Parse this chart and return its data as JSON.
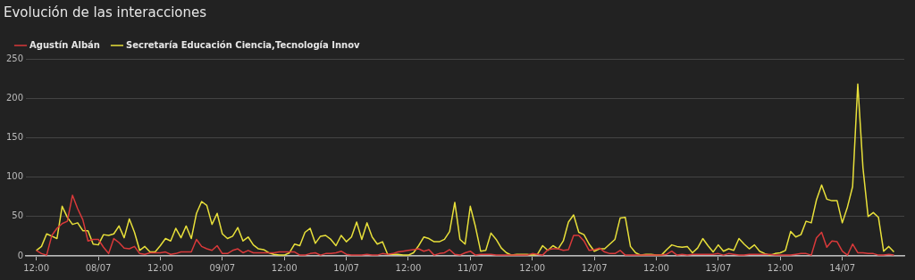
{
  "chart_data": {
    "type": "line",
    "title": "Evolución de las interacciones",
    "x": [
      "--07-07T12:00",
      "--07-07T13:00",
      "--07-07T14:00",
      "--07-07T15:00",
      "--07-07T16:00",
      "--07-07T17:00",
      "--07-07T18:00",
      "--07-07T19:00",
      "--07-07T20:00",
      "--07-07T21:00",
      "--07-07T22:00",
      "--07-07T23:00",
      "--07-08T00:00",
      "--07-08T01:00",
      "--07-08T02:00",
      "--07-08T03:00",
      "--07-08T04:00",
      "--07-08T05:00",
      "--07-08T06:00",
      "--07-08T07:00",
      "--07-08T08:00",
      "--07-08T09:00",
      "--07-08T10:00",
      "--07-08T11:00",
      "--07-08T12:00",
      "--07-08T13:00",
      "--07-08T14:00",
      "--07-08T15:00",
      "--07-08T16:00",
      "--07-08T17:00",
      "--07-08T18:00",
      "--07-08T19:00",
      "--07-08T20:00",
      "--07-08T21:00",
      "--07-08T22:00",
      "--07-08T23:00",
      "--07-09T00:00",
      "--07-09T01:00",
      "--07-09T02:00",
      "--07-09T03:00",
      "--07-09T04:00",
      "--07-09T05:00",
      "--07-09T06:00",
      "--07-09T07:00",
      "--07-09T08:00",
      "--07-09T09:00",
      "--07-09T10:00",
      "--07-09T11:00",
      "--07-09T12:00",
      "--07-09T13:00",
      "--07-09T14:00",
      "--07-09T15:00",
      "--07-09T16:00",
      "--07-09T17:00",
      "--07-09T18:00",
      "--07-09T19:00",
      "--07-09T20:00",
      "--07-09T21:00",
      "--07-09T22:00",
      "--07-09T23:00",
      "--07-10T00:00",
      "--07-10T01:00",
      "--07-10T02:00",
      "--07-10T03:00",
      "--07-10T04:00",
      "--07-10T05:00",
      "--07-10T06:00",
      "--07-10T07:00",
      "--07-10T08:00",
      "--07-10T09:00",
      "--07-10T10:00",
      "--07-10T11:00",
      "--07-10T12:00",
      "--07-10T13:00",
      "--07-10T14:00",
      "--07-10T15:00",
      "--07-10T16:00",
      "--07-10T17:00",
      "--07-10T18:00",
      "--07-10T19:00",
      "--07-10T20:00",
      "--07-10T21:00",
      "--07-10T22:00",
      "--07-10T23:00",
      "--07-11T00:00",
      "--07-11T01:00",
      "--07-11T02:00",
      "--07-11T03:00",
      "--07-11T04:00",
      "--07-11T05:00",
      "--07-11T06:00",
      "--07-11T07:00",
      "--07-11T08:00",
      "--07-11T09:00",
      "--07-11T10:00",
      "--07-11T11:00",
      "--07-11T12:00",
      "--07-11T13:00",
      "--07-11T14:00",
      "--07-11T15:00",
      "--07-11T16:00",
      "--07-11T17:00",
      "--07-11T18:00",
      "--07-11T19:00",
      "--07-11T20:00",
      "--07-11T21:00",
      "--07-11T22:00",
      "--07-11T23:00",
      "--07-12T00:00",
      "--07-12T01:00",
      "--07-12T02:00",
      "--07-12T03:00",
      "--07-12T04:00",
      "--07-12T05:00",
      "--07-12T06:00",
      "--07-12T07:00",
      "--07-12T08:00",
      "--07-12T09:00",
      "--07-12T10:00",
      "--07-12T11:00",
      "--07-12T12:00",
      "--07-12T13:00",
      "--07-12T14:00",
      "--07-12T15:00",
      "--07-12T16:00",
      "--07-12T17:00",
      "--07-12T18:00",
      "--07-12T19:00",
      "--07-12T20:00",
      "--07-12T21:00",
      "--07-12T22:00",
      "--07-12T23:00",
      "--07-13T00:00",
      "--07-13T01:00",
      "--07-13T02:00",
      "--07-13T03:00",
      "--07-13T04:00",
      "--07-13T05:00",
      "--07-13T06:00",
      "--07-13T07:00",
      "--07-13T08:00",
      "--07-13T09:00",
      "--07-13T10:00",
      "--07-13T11:00",
      "--07-13T12:00",
      "--07-13T13:00",
      "--07-13T14:00",
      "--07-13T15:00",
      "--07-13T16:00",
      "--07-13T17:00",
      "--07-13T18:00",
      "--07-13T19:00",
      "--07-13T20:00",
      "--07-13T21:00",
      "--07-13T22:00",
      "--07-13T23:00",
      "--07-14T00:00",
      "--07-14T01:00",
      "--07-14T02:00",
      "--07-14T03:00",
      "--07-14T04:00",
      "--07-14T05:00",
      "--07-14T06:00",
      "--07-14T07:00",
      "--07-14T08:00",
      "--07-14T09:00",
      "--07-14T10:00"
    ],
    "series": [
      {
        "name": "Agustín Albán",
        "color": "#d9393a",
        "values": [
          7,
          3,
          1,
          26,
          35,
          41,
          44,
          77,
          60,
          46,
          19,
          21,
          21,
          11,
          3,
          22,
          17,
          10,
          9,
          12,
          3,
          2,
          4,
          4,
          4,
          5,
          2,
          3,
          5,
          5,
          5,
          21,
          12,
          9,
          7,
          13,
          3,
          3,
          7,
          9,
          4,
          7,
          4,
          4,
          4,
          4,
          4,
          5,
          5,
          5,
          5,
          1,
          1,
          3,
          4,
          1,
          3,
          3,
          4,
          6,
          2,
          1,
          1,
          1,
          2,
          1,
          1,
          3,
          2,
          3,
          5,
          6,
          7,
          8,
          9,
          6,
          8,
          1,
          3,
          4,
          8,
          2,
          1,
          4,
          6,
          1,
          2,
          2,
          2,
          1,
          1,
          1,
          1,
          1,
          1,
          1,
          3,
          2,
          1,
          8,
          9,
          9,
          7,
          8,
          26,
          26,
          19,
          7,
          8,
          10,
          5,
          3,
          3,
          7,
          1,
          1,
          1,
          1,
          1,
          1,
          1,
          1,
          2,
          6,
          1,
          2,
          1,
          2,
          2,
          2,
          2,
          2,
          3,
          1,
          3,
          2,
          1,
          1,
          2,
          2,
          2,
          2,
          2,
          1,
          1,
          1,
          1,
          2,
          3,
          3,
          1,
          23,
          30,
          11,
          19,
          18,
          6,
          1,
          15,
          4,
          4,
          3,
          3,
          1,
          1,
          2,
          1
        ]
      },
      {
        "name": "Secretaría Educación Ciencia,Tecnología Innov",
        "color": "#e8e03a",
        "values": [
          7,
          12,
          28,
          25,
          22,
          63,
          49,
          40,
          42,
          32,
          32,
          15,
          14,
          27,
          26,
          28,
          38,
          23,
          47,
          30,
          7,
          12,
          5,
          5,
          13,
          22,
          19,
          35,
          23,
          38,
          22,
          54,
          69,
          64,
          40,
          54,
          28,
          22,
          25,
          36,
          19,
          24,
          14,
          9,
          8,
          4,
          2,
          1,
          1,
          4,
          15,
          13,
          30,
          35,
          16,
          25,
          26,
          21,
          13,
          26,
          18,
          24,
          43,
          21,
          42,
          24,
          15,
          18,
          2,
          2,
          2,
          1,
          1,
          4,
          13,
          24,
          22,
          18,
          18,
          21,
          31,
          68,
          21,
          15,
          63,
          37,
          6,
          7,
          29,
          21,
          10,
          4,
          1,
          2,
          2,
          2,
          1,
          2,
          13,
          7,
          13,
          9,
          19,
          43,
          52,
          30,
          27,
          15,
          6,
          9,
          9,
          15,
          21,
          48,
          49,
          12,
          4,
          1,
          2,
          2,
          1,
          1,
          8,
          14,
          12,
          11,
          12,
          4,
          10,
          22,
          13,
          5,
          14,
          6,
          9,
          7,
          22,
          15,
          9,
          14,
          6,
          3,
          1,
          3,
          4,
          7,
          31,
          24,
          27,
          44,
          42,
          71,
          90,
          72,
          70,
          70,
          42,
          62,
          88,
          218,
          112,
          50,
          55,
          49,
          6,
          12,
          5
        ]
      }
    ],
    "xlim": [
      "--07-07T10:00",
      "--07-14T12:00"
    ],
    "xticks": [
      {
        "value": "--07-07T12:00",
        "label": "12:00"
      },
      {
        "value": "--07-08",
        "label": "08/07"
      },
      {
        "value": "--07-08T12:00",
        "label": "12:00"
      },
      {
        "value": "--07-09",
        "label": "09/07"
      },
      {
        "value": "--07-09T12:00",
        "label": "12:00"
      },
      {
        "value": "--07-10",
        "label": "10/07"
      },
      {
        "value": "--07-10T12:00",
        "label": "12:00"
      },
      {
        "value": "--07-11",
        "label": "11/07"
      },
      {
        "value": "--07-11T12:00",
        "label": "12:00"
      },
      {
        "value": "--07-12",
        "label": "12/07"
      },
      {
        "value": "--07-12T12:00",
        "label": "12:00"
      },
      {
        "value": "--07-13",
        "label": "13/07"
      },
      {
        "value": "--07-13T12:00",
        "label": "12:00"
      },
      {
        "value": "--07-14",
        "label": "14/07"
      }
    ],
    "ylim": [
      0,
      250
    ],
    "yticks": [
      0,
      50,
      100,
      150,
      200,
      250
    ],
    "grid": "y",
    "legend": "top left",
    "marker": "none",
    "line_style": "solid"
  }
}
